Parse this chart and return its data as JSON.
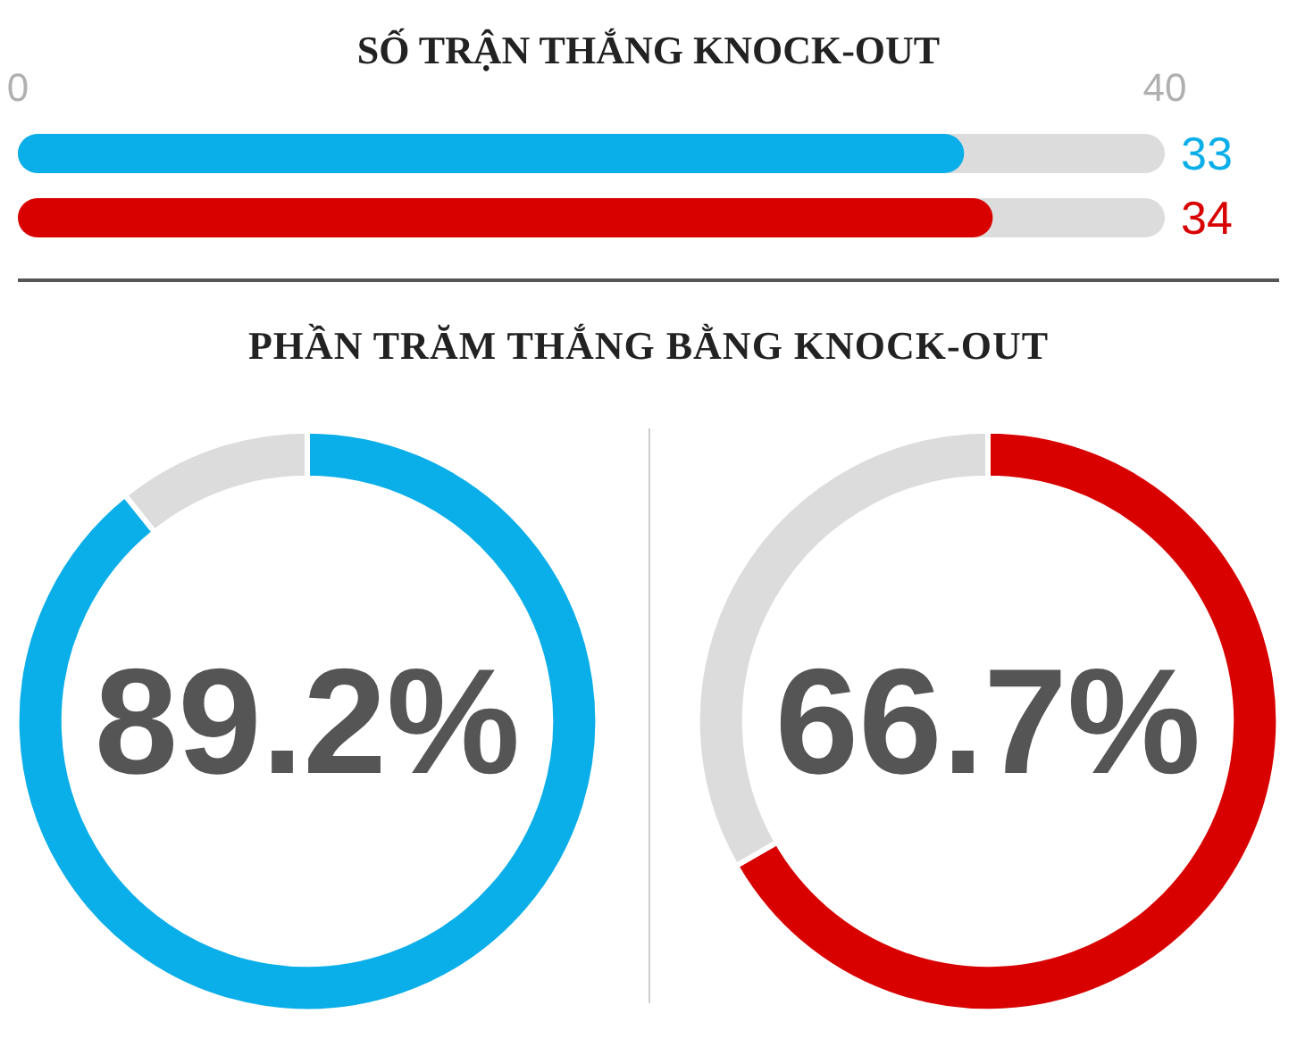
{
  "chart_data": [
    {
      "type": "bar",
      "orientation": "horizontal",
      "title": "SỐ TRẬN THẮNG KNOCK-OUT",
      "categories": [
        null,
        null
      ],
      "values": [
        33,
        34
      ],
      "colors": [
        "#0aaee9",
        "#d90000"
      ],
      "xlim": [
        0,
        40
      ],
      "xticks": [
        0,
        40
      ],
      "data_labels": true,
      "grid": false
    },
    {
      "type": "donut",
      "title": "PHẦN TRĂM THẮNG BẰNG KNOCK-OUT",
      "categories": [
        null,
        null
      ],
      "values": [
        89.2,
        10.8
      ],
      "colors": [
        "#0aaee9",
        "#dcdcdc"
      ],
      "annotations": [
        "89.2%"
      ]
    },
    {
      "type": "donut",
      "categories": [
        null,
        null
      ],
      "values": [
        66.7,
        33.3
      ],
      "colors": [
        "#d90000",
        "#dcdcdc"
      ],
      "annotations": [
        "66.7%"
      ]
    }
  ]
}
